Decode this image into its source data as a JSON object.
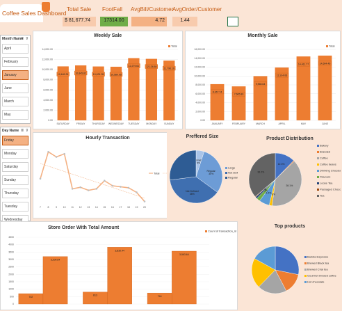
{
  "dashboard_title": "Coffee Sales Dashboard",
  "colors": {
    "accent": "#ed7d31",
    "accent_light": "#f4b183",
    "background": "#fbe5d6",
    "green": "#70ad47",
    "blue": "#4472c4"
  },
  "kpis": {
    "total_sale": {
      "label": "Total Sale",
      "currency": "$",
      "value": "81,677.74"
    },
    "footfall": {
      "label": "FootFall",
      "value": "17314.00"
    },
    "avg_bill": {
      "label": "AvgBill/Customer",
      "value": "4.72"
    },
    "avg_order": {
      "label": "AvgOrder/Customer",
      "value": "1.44"
    }
  },
  "month_slicer": {
    "title": "Month Name",
    "items": [
      "April",
      "February",
      "January",
      "June",
      "March",
      "May"
    ],
    "selected": "January"
  },
  "day_slicer": {
    "title": "Day Name",
    "items": [
      "Friday",
      "Monday",
      "Saturday",
      "Sunday",
      "Thursday",
      "Tuesday",
      "Wednesday"
    ],
    "selected": "Friday"
  },
  "weekly_sale": {
    "title": "Weekly Sale",
    "legend": "Total",
    "chart_data": {
      "type": "bar",
      "categories": [
        "SATURDAY",
        "FRIDAY",
        "THURSDAY",
        "WEDNESDAY",
        "TUESDAY",
        "MONDAY",
        "SUNDAY"
      ],
      "values": [
        10649.31,
        10845.82,
        10631.35,
        10580.95,
        12279.61,
        12136.84,
        11796.16
      ],
      "value_labels": [
        "10,649.31",
        "10,845.82",
        "10,631.35",
        "10,580.95",
        "12,279.61",
        "12,136.84",
        "11,796.16"
      ],
      "yticks": [
        "0.00",
        "2,000.00",
        "4,000.00",
        "6,000.00",
        "8,000.00",
        "10,000.00",
        "12,000.00",
        "14,000.00"
      ],
      "ylim": [
        0,
        14000
      ]
    }
  },
  "monthly_sale": {
    "title": "Monthly Sale",
    "legend": "Total",
    "chart_data": {
      "type": "bar",
      "categories": [
        "JANUARY",
        "FEBRUARY",
        "MARCH",
        "APRIL",
        "MAY",
        "JUNE"
      ],
      "values": [
        8167.74,
        7665.8,
        9968.64,
        11914.06,
        14411.77,
        14604.46
      ],
      "value_labels": [
        "8,167.74",
        "7,665.80",
        "9,968.64",
        "11,914.06",
        "14,411.77",
        "14,604.46"
      ],
      "yticks": [
        "0.00",
        "2,000.00",
        "4,000.00",
        "6,000.00",
        "8,000.00",
        "10,000.00",
        "12,000.00",
        "14,000.00",
        "16,000.00"
      ],
      "ylim": [
        0,
        16000
      ]
    }
  },
  "hourly_transaction": {
    "title": "Hourly Transaction",
    "legend": [
      "Total",
      "Linear (Total)"
    ],
    "chart_data": {
      "type": "line",
      "x": [
        "7",
        "8",
        "9",
        "10",
        "11",
        "12",
        "13",
        "14",
        "15",
        "16",
        "17",
        "18",
        "19",
        "20"
      ],
      "values": [
        470,
        1000,
        900,
        960,
        270,
        300,
        240,
        270,
        430,
        330,
        310,
        290,
        200,
        20
      ],
      "ylim": [
        0,
        1100
      ]
    }
  },
  "preferred_size": {
    "title": "Preffered Size",
    "chart_data": {
      "type": "pie",
      "labels": [
        "Small",
        "Regular",
        "Not Defined",
        "Large"
      ],
      "pct_labels": [
        "Small\n5%",
        "Regular\n30%",
        "Not Defined\n38%",
        ""
      ],
      "legend": [
        "Large",
        "Not Defined",
        "Regular"
      ],
      "values": [
        5,
        30,
        38,
        27
      ],
      "colors": [
        "#a9c4e8",
        "#6d9cd6",
        "#3f6fb0",
        "#2e5c94"
      ]
    }
  },
  "product_distribution": {
    "title": "Product Distribution",
    "chart_data": {
      "type": "pie",
      "labels": [
        "Bakery",
        "Branded",
        "Coffee",
        "Coffee beans",
        "Drinking Chocolate",
        "Flavours",
        "Loose Tea",
        "Packaged Chocolate",
        "Tea"
      ],
      "values": [
        12.3,
        0.5,
        39.1,
        1.8,
        6.4,
        2.2,
        1.1,
        0.4,
        36.2
      ],
      "value_labels": [
        "12.3%",
        "",
        "39.1%",
        "1.8%",
        "6.4%",
        "2.2%",
        "1.1%",
        "0.4%",
        "36.2%"
      ],
      "colors": [
        "#4472c4",
        "#ed7d31",
        "#a5a5a5",
        "#ffc000",
        "#5b9bd5",
        "#70ad47",
        "#264478",
        "#9e480e",
        "#636363"
      ]
    }
  },
  "store_order": {
    "title": "Store Order With Total Amount",
    "legend": "Count of transaction_id",
    "chart_data": {
      "type": "bar",
      "categories": [
        "Store 1",
        "Store 2",
        "Store 3"
      ],
      "series": [
        {
          "name": "Count of transaction_id",
          "values": [
            702,
            813,
            744
          ]
        },
        {
          "name": "Sum of Total",
          "values": [
            3200.84,
            3830.44,
            3563.64
          ]
        }
      ],
      "value_labels": [
        [
          "702",
          "3,200.84"
        ],
        [
          "813",
          "3,830.44"
        ],
        [
          "744",
          "3,563.64"
        ]
      ],
      "yticks": [
        "0",
        "500",
        "1000",
        "1500",
        "2000",
        "2500",
        "3000",
        "3500",
        "4000",
        "4500"
      ],
      "ylim": [
        0,
        4500
      ]
    }
  },
  "top_products": {
    "title": "Top products",
    "chart_data": {
      "type": "pie",
      "labels": [
        "Barista Espresso",
        "Brewed Black tea",
        "Brewed Chai tea",
        "Gourmet brewed coffee",
        "Hot chocolate"
      ],
      "values": [
        28.2,
        14.1,
        20.0,
        20.7,
        17.0
      ],
      "value_labels": [
        "",
        "",
        "",
        "",
        ""
      ],
      "colors": [
        "#4472c4",
        "#ed7d31",
        "#a5a5a5",
        "#ffc000",
        "#5b9bd5"
      ]
    }
  }
}
